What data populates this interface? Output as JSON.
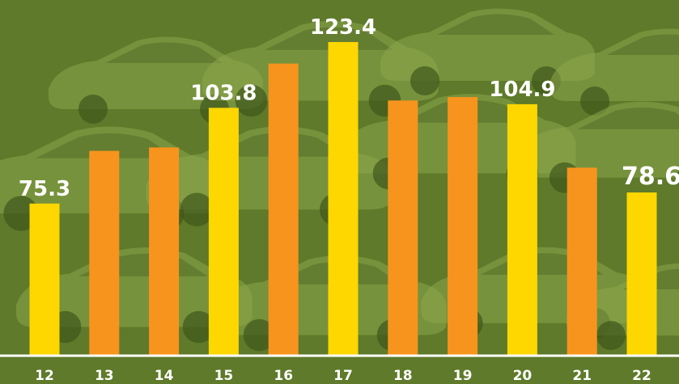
{
  "chart_data": {
    "type": "bar",
    "title": "",
    "xlabel": "",
    "ylabel": "",
    "categories": [
      "12",
      "13",
      "14",
      "15",
      "16",
      "17",
      "18",
      "19",
      "20",
      "21",
      "22"
    ],
    "values": [
      75.3,
      91,
      92,
      103.8,
      117,
      123.4,
      106,
      107,
      104.9,
      86,
      78.6
    ],
    "data_labels": [
      "75.3",
      "",
      "",
      "103.8",
      "",
      "123.4",
      "",
      "",
      "104.9",
      "",
      "78.6"
    ],
    "ylim": [
      30,
      130
    ],
    "grid": false,
    "legend": "none",
    "colors": {
      "yellow": "#ffd700",
      "orange": "#f7941d",
      "background": "#5e7a2a",
      "axis": "#ffffff"
    },
    "bar_colors": [
      "yellow",
      "orange",
      "orange",
      "yellow",
      "orange",
      "yellow",
      "orange",
      "orange",
      "yellow",
      "orange",
      "yellow"
    ]
  }
}
